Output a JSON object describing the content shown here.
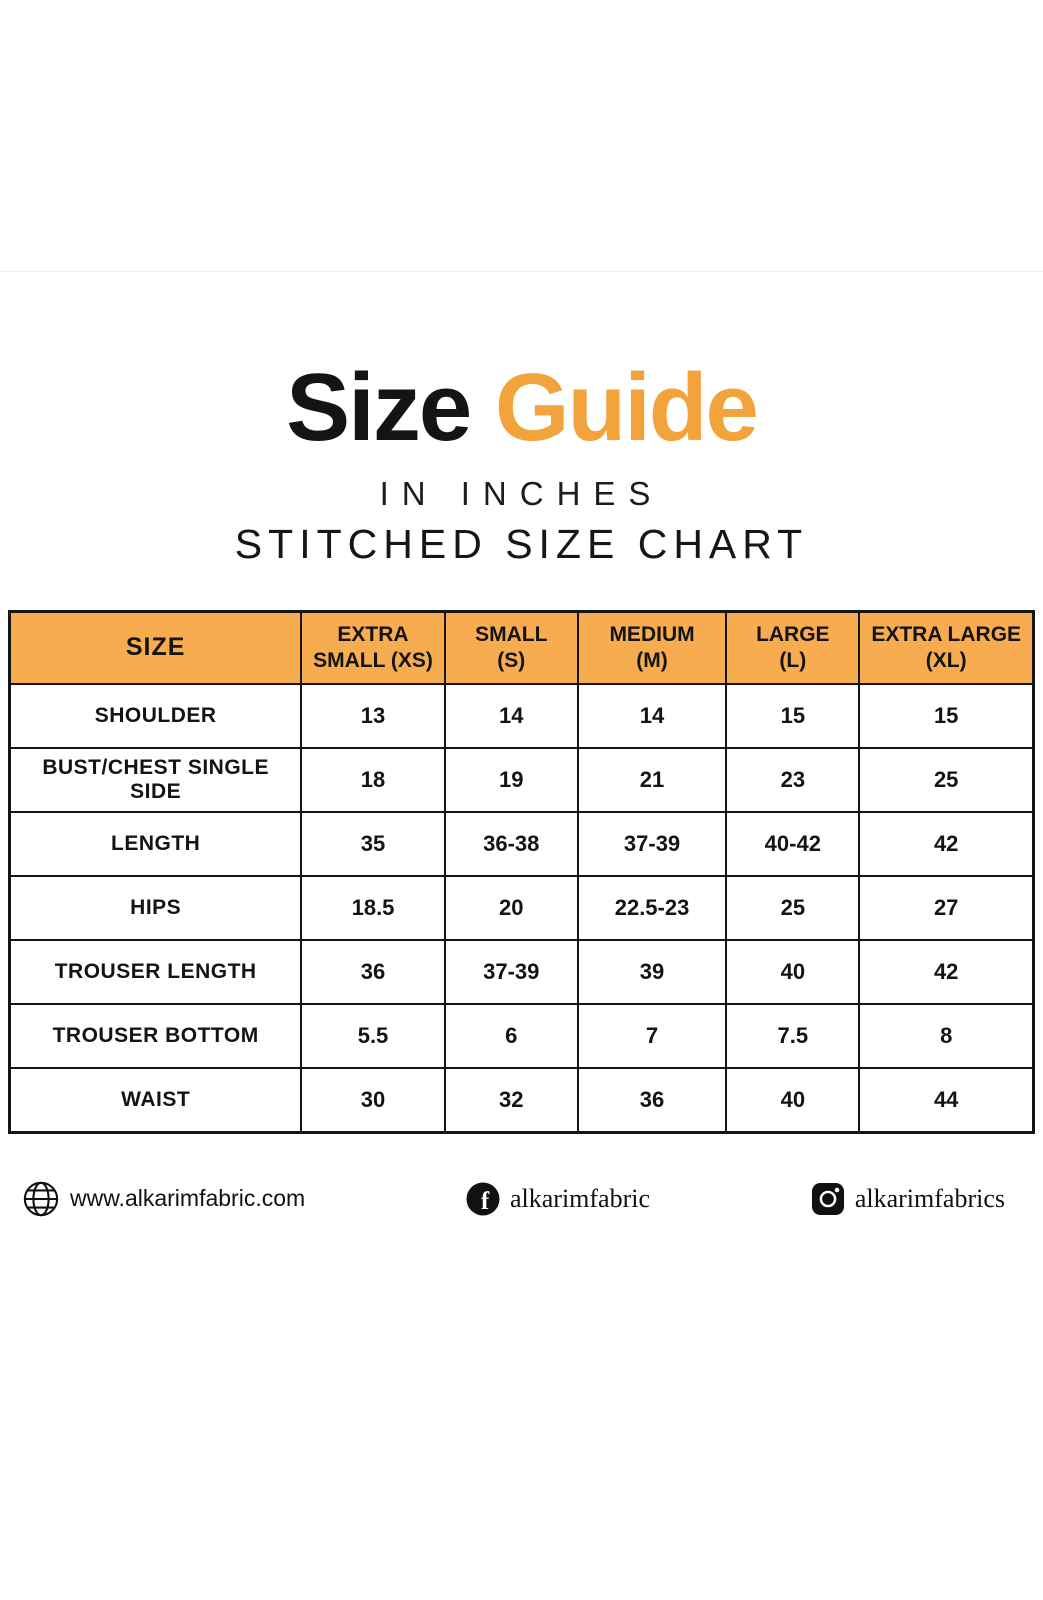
{
  "header": {
    "title_black": "Size",
    "title_orange": "Guide",
    "subtitle_inches": "IN INCHES",
    "subtitle_chart": "STITCHED SIZE CHART"
  },
  "chart_data": {
    "type": "table",
    "title": "Size Guide — Stitched Size Chart (in inches)",
    "columns": [
      "SIZE",
      "EXTRA\nSMALL (XS)",
      "SMALL\n(S)",
      "MEDIUM\n(M)",
      "LARGE\n(L)",
      "EXTRA LARGE\n(XL)"
    ],
    "rows": [
      {
        "label": "SHOULDER",
        "values": [
          "13",
          "14",
          "14",
          "15",
          "15"
        ]
      },
      {
        "label": "BUST/CHEST SINGLE SIDE",
        "values": [
          "18",
          "19",
          "21",
          "23",
          "25"
        ]
      },
      {
        "label": "LENGTH",
        "values": [
          "35",
          "36-38",
          "37-39",
          "40-42",
          "42"
        ]
      },
      {
        "label": "HIPS",
        "values": [
          "18.5",
          "20",
          "22.5-23",
          "25",
          "27"
        ]
      },
      {
        "label": "TROUSER LENGTH",
        "values": [
          "36",
          "37-39",
          "39",
          "40",
          "42"
        ]
      },
      {
        "label": "TROUSER BOTTOM",
        "values": [
          "5.5",
          "6",
          "7",
          "7.5",
          "8"
        ]
      },
      {
        "label": "WAIST",
        "values": [
          "30",
          "32",
          "36",
          "40",
          "44"
        ]
      }
    ]
  },
  "footer": {
    "website": "www.alkarimfabric.com",
    "facebook_handle": "alkarimfabric",
    "instagram_handle": "alkarimfabrics"
  },
  "colors": {
    "accent_orange": "#F2A33B",
    "table_header_bg": "#F6AC4F",
    "text_black": "#141414"
  }
}
